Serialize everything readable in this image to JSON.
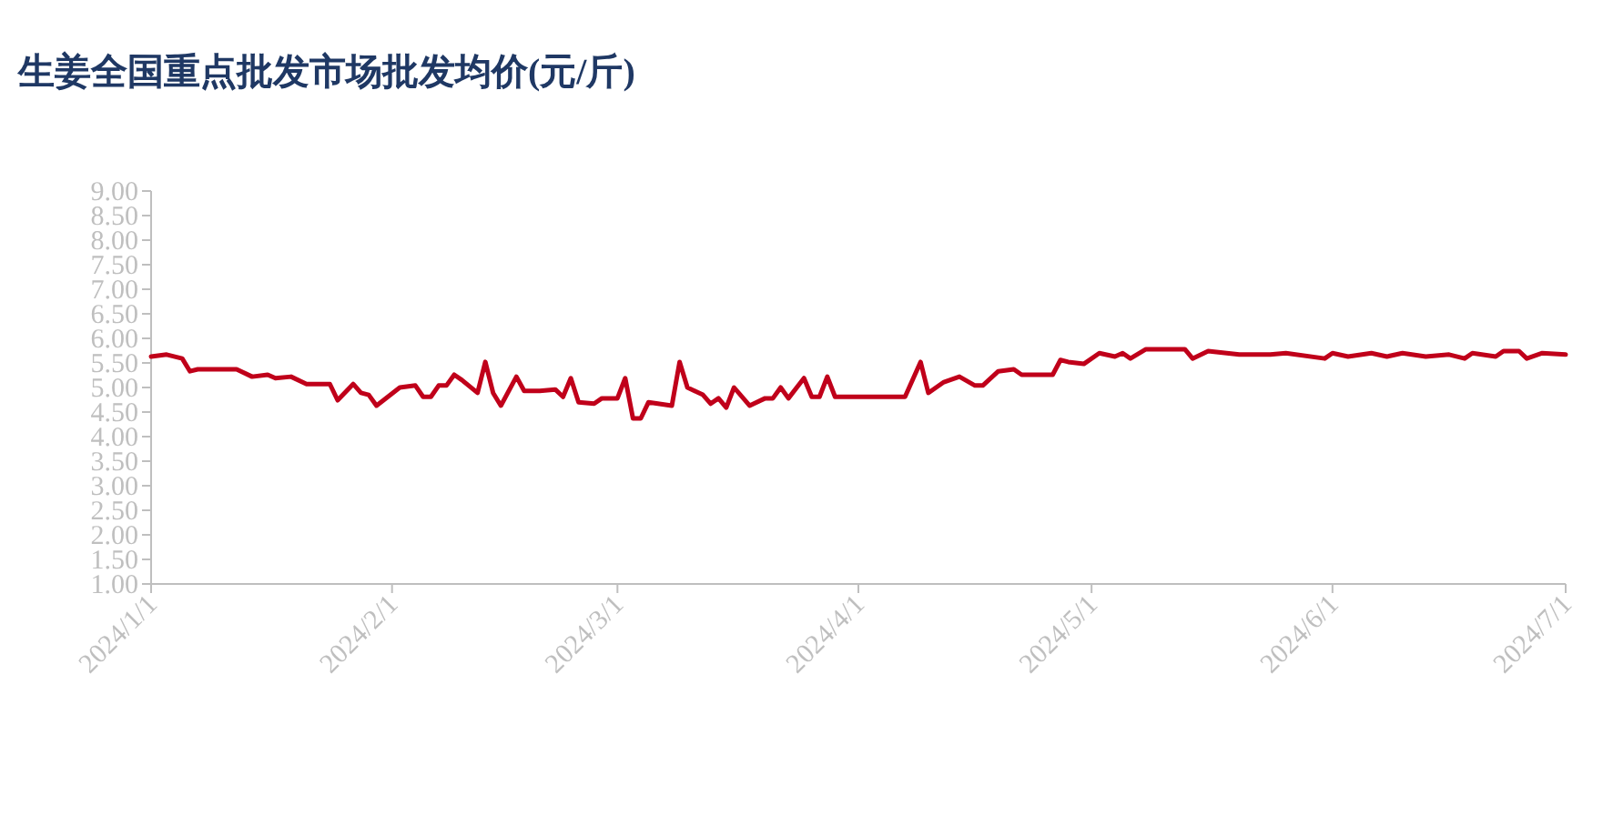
{
  "chart_data": {
    "type": "line",
    "title": "生姜全国重点批发市场批发均价(元/斤)",
    "x": [
      "2024-01-01",
      "2024-01-03",
      "2024-01-05",
      "2024-01-06",
      "2024-01-07",
      "2024-01-10",
      "2024-01-12",
      "2024-01-14",
      "2024-01-16",
      "2024-01-17",
      "2024-01-19",
      "2024-01-21",
      "2024-01-24",
      "2024-01-25",
      "2024-01-27",
      "2024-01-28",
      "2024-01-29",
      "2024-01-30",
      "2024-02-02",
      "2024-02-04",
      "2024-02-05",
      "2024-02-06",
      "2024-02-07",
      "2024-02-08",
      "2024-02-09",
      "2024-02-10",
      "2024-02-12",
      "2024-02-13",
      "2024-02-14",
      "2024-02-15",
      "2024-02-17",
      "2024-02-18",
      "2024-02-20",
      "2024-02-22",
      "2024-02-23",
      "2024-02-24",
      "2024-02-25",
      "2024-02-27",
      "2024-02-28",
      "2024-03-01",
      "2024-03-02",
      "2024-03-03",
      "2024-03-04",
      "2024-03-05",
      "2024-03-08",
      "2024-03-09",
      "2024-03-10",
      "2024-03-12",
      "2024-03-13",
      "2024-03-14",
      "2024-03-15",
      "2024-03-16",
      "2024-03-18",
      "2024-03-20",
      "2024-03-21",
      "2024-03-22",
      "2024-03-23",
      "2024-03-25",
      "2024-03-26",
      "2024-03-27",
      "2024-03-28",
      "2024-03-29",
      "2024-04-07",
      "2024-04-09",
      "2024-04-10",
      "2024-04-12",
      "2024-04-14",
      "2024-04-16",
      "2024-04-17",
      "2024-04-19",
      "2024-04-21",
      "2024-04-22",
      "2024-04-26",
      "2024-04-27",
      "2024-04-28",
      "2024-04-30",
      "2024-05-02",
      "2024-05-04",
      "2024-05-05",
      "2024-05-06",
      "2024-05-08",
      "2024-05-10",
      "2024-05-13",
      "2024-05-14",
      "2024-05-16",
      "2024-05-20",
      "2024-05-24",
      "2024-05-26",
      "2024-05-31",
      "2024-06-01",
      "2024-06-03",
      "2024-06-06",
      "2024-06-08",
      "2024-06-10",
      "2024-06-13",
      "2024-06-16",
      "2024-06-18",
      "2024-06-19",
      "2024-06-22",
      "2024-06-23",
      "2024-06-25",
      "2024-06-26",
      "2024-06-28",
      "2024-07-01"
    ],
    "series": [
      {
        "color": "#c0001a",
        "values": [
          5.63,
          5.67,
          5.59,
          5.33,
          5.37,
          5.37,
          5.37,
          5.22,
          5.26,
          5.19,
          5.22,
          5.07,
          5.07,
          4.74,
          5.07,
          4.89,
          4.85,
          4.63,
          5.0,
          5.04,
          4.81,
          4.81,
          5.04,
          5.04,
          5.26,
          5.15,
          4.89,
          5.52,
          4.89,
          4.63,
          5.22,
          4.93,
          4.93,
          4.96,
          4.81,
          5.19,
          4.7,
          4.67,
          4.78,
          4.78,
          5.19,
          4.37,
          4.37,
          4.7,
          4.63,
          5.52,
          5.0,
          4.85,
          4.67,
          4.78,
          4.59,
          5.0,
          4.63,
          4.78,
          4.78,
          5.0,
          4.78,
          5.19,
          4.81,
          4.81,
          5.22,
          4.81,
          4.81,
          5.52,
          4.89,
          5.11,
          5.22,
          5.04,
          5.04,
          5.33,
          5.37,
          5.26,
          5.26,
          5.56,
          5.52,
          5.48,
          5.7,
          5.63,
          5.7,
          5.59,
          5.78,
          5.78,
          5.78,
          5.59,
          5.74,
          5.67,
          5.67,
          5.7,
          5.59,
          5.7,
          5.63,
          5.7,
          5.63,
          5.7,
          5.63,
          5.67,
          5.59,
          5.7,
          5.63,
          5.74,
          5.74,
          5.59,
          5.7,
          5.67
        ]
      }
    ],
    "xlim": [
      "2024-01-01",
      "2024-07-01"
    ],
    "xticks": [
      {
        "value": "2024-01-01",
        "label": "2024/1/1"
      },
      {
        "value": "2024-02-01",
        "label": "2024/2/1"
      },
      {
        "value": "2024-03-01",
        "label": "2024/3/1"
      },
      {
        "value": "2024-04-01",
        "label": "2024/4/1"
      },
      {
        "value": "2024-05-01",
        "label": "2024/5/1"
      },
      {
        "value": "2024-06-01",
        "label": "2024/6/1"
      },
      {
        "value": "2024-07-01",
        "label": "2024/7/1"
      }
    ],
    "ylim": [
      1,
      9
    ],
    "yticks": [
      {
        "value": 1,
        "label": "1.00"
      },
      {
        "value": 1.5,
        "label": "1.50"
      },
      {
        "value": 2,
        "label": "2.00"
      },
      {
        "value": 2.5,
        "label": "2.50"
      },
      {
        "value": 3,
        "label": "3.00"
      },
      {
        "value": 3.5,
        "label": "3.50"
      },
      {
        "value": 4,
        "label": "4.00"
      },
      {
        "value": 4.5,
        "label": "4.50"
      },
      {
        "value": 5,
        "label": "5.00"
      },
      {
        "value": 5.5,
        "label": "5.50"
      },
      {
        "value": 6,
        "label": "6.00"
      },
      {
        "value": 6.5,
        "label": "6.50"
      },
      {
        "value": 7,
        "label": "7.00"
      },
      {
        "value": 7.5,
        "label": "7.50"
      },
      {
        "value": 8,
        "label": "8.00"
      },
      {
        "value": 8.5,
        "label": "8.50"
      },
      {
        "value": 9,
        "label": "9.00"
      }
    ]
  }
}
